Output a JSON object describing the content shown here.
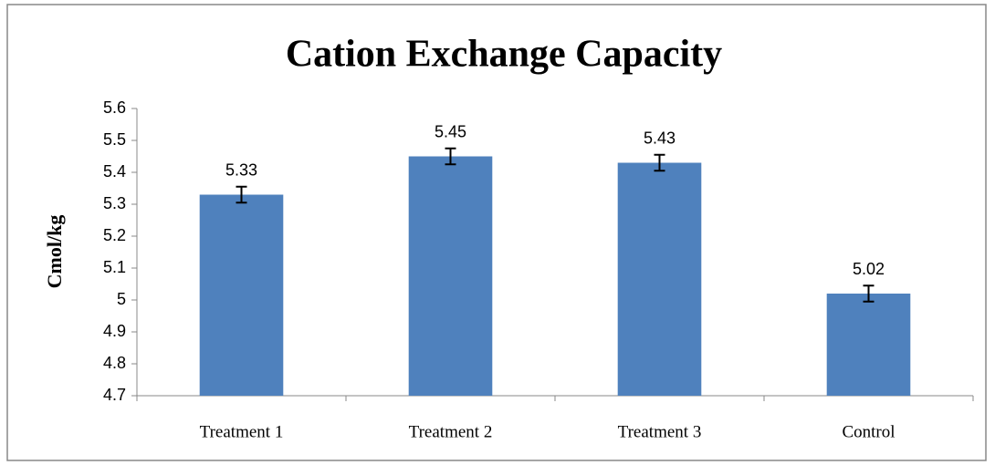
{
  "chart_data": {
    "type": "bar",
    "title": "Cation Exchange Capacity",
    "y_label": "Cmol/kg",
    "categories": [
      "Treatment 1",
      "Treatment 2",
      "Treatment 3",
      "Control"
    ],
    "values": [
      5.33,
      5.45,
      5.43,
      5.02
    ],
    "errors": [
      0.025,
      0.025,
      0.025,
      0.025
    ],
    "color": "#4f81bd",
    "ylim": [
      4.7,
      5.6
    ],
    "yticks": [
      4.7,
      4.8,
      4.9,
      5,
      5.1,
      5.2,
      5.3,
      5.4,
      5.5,
      5.6
    ],
    "grid": false,
    "data_labels": true
  }
}
